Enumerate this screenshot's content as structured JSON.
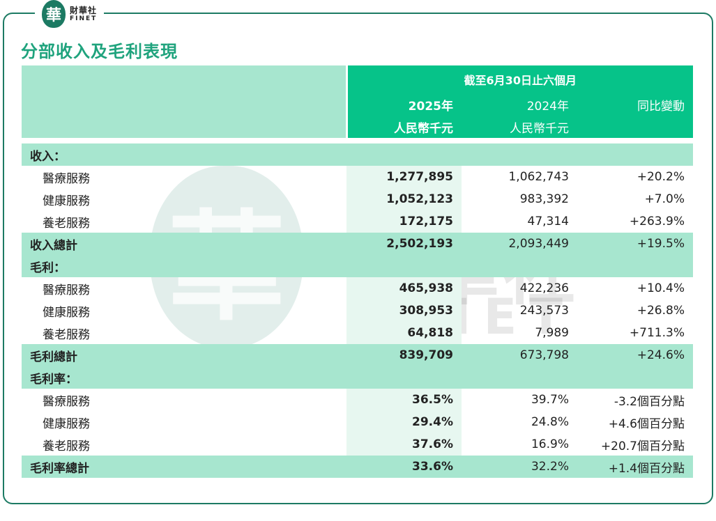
{
  "logo": {
    "mark": "華",
    "name_cn": "財華社",
    "name_en": "FINET"
  },
  "title": "分部收入及毛利表現",
  "watermark": {
    "seal": "華",
    "name_cn": "財華社",
    "name_en": "FINET"
  },
  "header": {
    "period": "截至6月30日止六個月",
    "columns": [
      {
        "year": "2025年",
        "unit": "人民幣千元"
      },
      {
        "year": "2024年",
        "unit": "人民幣千元"
      },
      {
        "year": "同比變動",
        "unit": ""
      }
    ]
  },
  "sections": {
    "revenue": {
      "label": "收入：",
      "rows": [
        {
          "name": "醫療服務",
          "y2025": "1,277,895",
          "y2024": "1,062,743",
          "change": "+20.2%"
        },
        {
          "name": "健康服務",
          "y2025": "1,052,123",
          "y2024": "983,392",
          "change": "+7.0%"
        },
        {
          "name": "養老服務",
          "y2025": "172,175",
          "y2024": "47,314",
          "change": "+263.9%"
        }
      ],
      "total": {
        "name": "收入總計",
        "y2025": "2,502,193",
        "y2024": "2,093,449",
        "change": "+19.5%"
      }
    },
    "gross_profit": {
      "label": "毛利：",
      "rows": [
        {
          "name": "醫療服務",
          "y2025": "465,938",
          "y2024": "422,236",
          "change": "+10.4%"
        },
        {
          "name": "健康服務",
          "y2025": "308,953",
          "y2024": "243,573",
          "change": "+26.8%"
        },
        {
          "name": "養老服務",
          "y2025": "64,818",
          "y2024": "7,989",
          "change": "+711.3%"
        }
      ],
      "total": {
        "name": "毛利總計",
        "y2025": "839,709",
        "y2024": "673,798",
        "change": "+24.6%"
      }
    },
    "margin": {
      "label": "毛利率：",
      "rows": [
        {
          "name": "醫療服務",
          "y2025": "36.5%",
          "y2024": "39.7%",
          "change": "-3.2個百分點"
        },
        {
          "name": "健康服務",
          "y2025": "29.4%",
          "y2024": "24.8%",
          "change": "+4.6個百分點"
        },
        {
          "name": "養老服務",
          "y2025": "37.6%",
          "y2024": "16.9%",
          "change": "+20.7個百分點"
        }
      ],
      "total": {
        "name": "毛利率總計",
        "y2025": "33.6%",
        "y2024": "32.2%",
        "change": "+1.4個百分點"
      }
    }
  },
  "colors": {
    "accent": "#1fa37d",
    "header": "#06c389",
    "band": "#a7e6cf",
    "frame": "#1c7a63"
  }
}
